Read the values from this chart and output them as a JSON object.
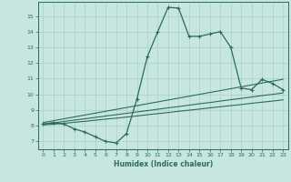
{
  "xlabel": "Humidex (Indice chaleur)",
  "bg_color": "#c8e6e0",
  "grid_color": "#a8cfc8",
  "line_color": "#2a6b60",
  "xlim": [
    -0.5,
    23.5
  ],
  "ylim": [
    6.5,
    15.9
  ],
  "xticks": [
    0,
    1,
    2,
    3,
    4,
    5,
    6,
    7,
    8,
    9,
    10,
    11,
    12,
    13,
    14,
    15,
    16,
    17,
    18,
    19,
    20,
    21,
    22,
    23
  ],
  "yticks": [
    7,
    8,
    9,
    10,
    11,
    12,
    13,
    14,
    15
  ],
  "main_x": [
    0,
    1,
    2,
    3,
    4,
    5,
    6,
    7,
    8,
    9,
    10,
    11,
    12,
    13,
    14,
    15,
    16,
    17,
    18,
    19,
    20,
    21,
    22,
    23
  ],
  "main_y": [
    8.1,
    8.2,
    8.1,
    7.8,
    7.6,
    7.3,
    7.0,
    6.9,
    7.5,
    9.7,
    12.4,
    14.0,
    15.55,
    15.5,
    13.7,
    13.7,
    13.85,
    14.0,
    13.0,
    10.4,
    10.3,
    10.95,
    10.7,
    10.3
  ],
  "band_lines": [
    [
      8.05,
      8.1,
      8.15,
      8.22,
      8.28,
      8.35,
      8.42,
      8.48,
      8.55,
      8.62,
      8.7,
      8.77,
      8.84,
      8.92,
      8.99,
      9.06,
      9.14,
      9.21,
      9.28,
      9.35,
      9.43,
      9.5,
      9.57,
      9.65
    ],
    [
      8.1,
      8.18,
      8.27,
      8.36,
      8.44,
      8.53,
      8.62,
      8.7,
      8.79,
      8.88,
      8.96,
      9.05,
      9.14,
      9.22,
      9.31,
      9.4,
      9.48,
      9.57,
      9.66,
      9.74,
      9.83,
      9.92,
      10.0,
      10.09
    ],
    [
      8.2,
      8.32,
      8.44,
      8.56,
      8.68,
      8.8,
      8.92,
      9.04,
      9.16,
      9.28,
      9.4,
      9.52,
      9.64,
      9.76,
      9.88,
      10.0,
      10.12,
      10.24,
      10.36,
      10.48,
      10.6,
      10.72,
      10.84,
      10.96
    ]
  ]
}
